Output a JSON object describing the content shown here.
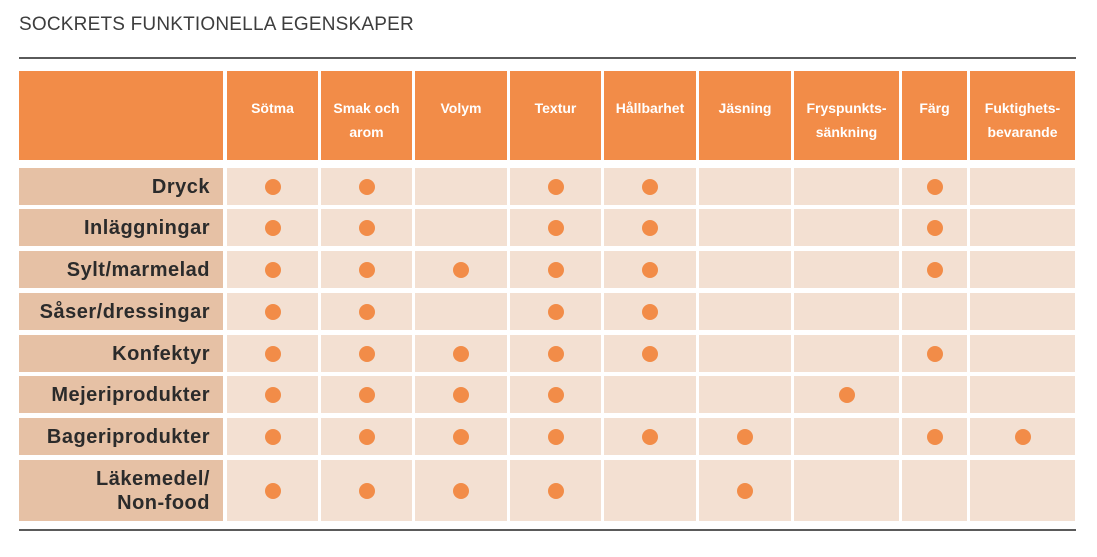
{
  "title": "SOCKRETS FUNKTIONELLA EGENSKAPER",
  "colors": {
    "header": "#f28c48",
    "row_label": "#e6c1a5",
    "cell": "#f3e0d2",
    "dot": "#f28c48"
  },
  "chart_data": {
    "type": "table",
    "columns": [
      "Sötma",
      "Smak och\narom",
      "Volym",
      "Textur",
      "Hållbarhet",
      "Jäsning",
      "Fryspunkts-\nsänkning",
      "Färg",
      "Fuktighets-\nbevarande"
    ],
    "rows": [
      {
        "label": "Dryck",
        "marks": [
          1,
          1,
          0,
          1,
          1,
          0,
          0,
          1,
          0
        ]
      },
      {
        "label": "Inläggningar",
        "marks": [
          1,
          1,
          0,
          1,
          1,
          0,
          0,
          1,
          0
        ]
      },
      {
        "label": "Sylt/marmelad",
        "marks": [
          1,
          1,
          1,
          1,
          1,
          0,
          0,
          1,
          0
        ]
      },
      {
        "label": "Såser/dressingar",
        "marks": [
          1,
          1,
          0,
          1,
          1,
          0,
          0,
          0,
          0
        ]
      },
      {
        "label": "Konfektyr",
        "marks": [
          1,
          1,
          1,
          1,
          1,
          0,
          0,
          1,
          0
        ]
      },
      {
        "label": "Mejeriprodukter",
        "marks": [
          1,
          1,
          1,
          1,
          0,
          0,
          1,
          0,
          0
        ]
      },
      {
        "label": "Bageriprodukter",
        "marks": [
          1,
          1,
          1,
          1,
          1,
          1,
          0,
          1,
          1
        ]
      },
      {
        "label": "Läkemedel/\nNon-food",
        "marks": [
          1,
          1,
          1,
          1,
          0,
          1,
          0,
          0,
          0
        ]
      }
    ]
  }
}
